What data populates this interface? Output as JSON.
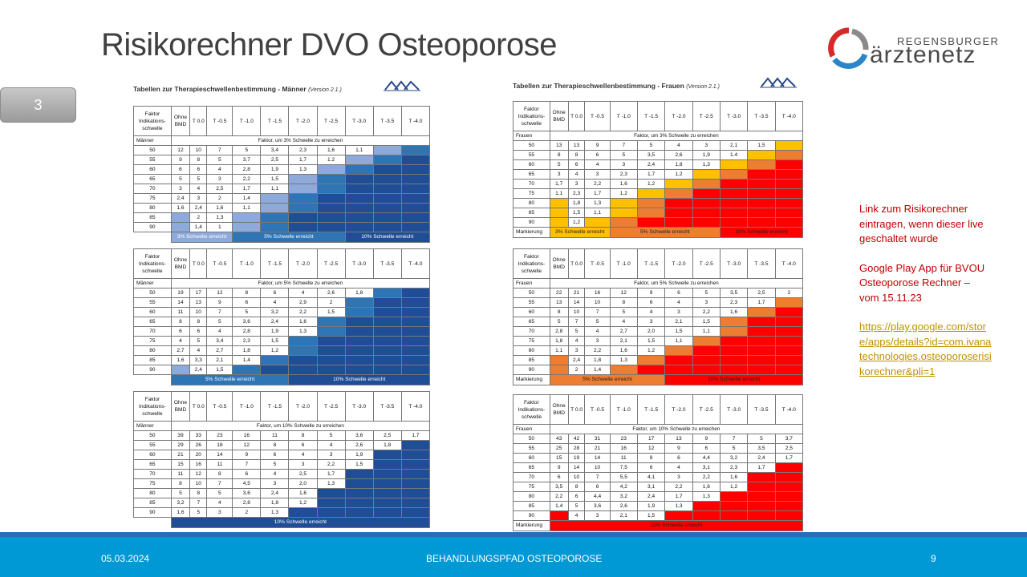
{
  "slide": {
    "title": "Risikorechner DVO Osteoporose",
    "slide_badge": "3",
    "logo": {
      "line1": "REGENSBURGER",
      "line2": "ärztenetz"
    }
  },
  "panels": {
    "men_title": "Tabellen zur Therapieschwellenbestimmung - Männer",
    "women_title": "Tabellen zur Therapieschwellenbestimmung - Frauen",
    "version": "(Version 2.1.)"
  },
  "table_headers": [
    "Faktor Indikations-schwelle",
    "Ohne BMD",
    "T 0.0",
    "T -0.5",
    "T -1.0",
    "T -1.5",
    "T -2.0",
    "T -2.5",
    "T -3.0",
    "T -3.5",
    "T -4.0"
  ],
  "tables": {
    "men3": {
      "group": "Männer",
      "caption": "Faktor, um 3% Schwelle zu erreichen",
      "rows": [
        [
          "50",
          "12",
          "10",
          "7",
          "5",
          "3,4",
          "2,3",
          "1,6",
          "1,1",
          "",
          ""
        ],
        [
          "55",
          "9",
          "8",
          "5",
          "3,7",
          "2,5",
          "1,7",
          "1.2",
          "",
          "",
          ""
        ],
        [
          "60",
          "6",
          "6",
          "4",
          "2,8",
          "1,9",
          "1,3",
          "",
          "",
          "",
          ""
        ],
        [
          "65",
          "5",
          "5",
          "3",
          "2,2",
          "1,5",
          "",
          "",
          "",
          "",
          ""
        ],
        [
          "70",
          "3",
          "4",
          "2,5",
          "1,7",
          "1,1",
          "",
          "",
          "",
          "",
          ""
        ],
        [
          "75",
          "2,4",
          "3",
          "2",
          "1,4",
          "",
          "",
          "",
          "",
          "",
          ""
        ],
        [
          "80",
          "1,6",
          "2,4",
          "1,6",
          "1,1",
          "",
          "",
          "",
          "",
          "",
          ""
        ],
        [
          "85",
          "",
          "2",
          "1,3",
          "",
          "",
          "",
          "",
          "",
          "",
          ""
        ],
        [
          "90",
          "",
          "1,4",
          "1",
          "",
          "",
          "",
          "",
          "",
          "",
          ""
        ]
      ],
      "legend": [
        "3% Schwelle erreicht",
        "5% Schwelle erreicht",
        "10% Schwelle erreicht"
      ]
    },
    "men5": {
      "group": "Männer",
      "caption": "Faktor, um 5% Schwelle zu erreichen",
      "rows": [
        [
          "50",
          "19",
          "17",
          "12",
          "8",
          "6",
          "4",
          "2,6",
          "1,8",
          "",
          ""
        ],
        [
          "55",
          "14",
          "13",
          "9",
          "6",
          "4",
          "2,9",
          "2",
          "",
          "",
          ""
        ],
        [
          "60",
          "11",
          "10",
          "7",
          "5",
          "3,2",
          "2,2",
          "1,5",
          "",
          "",
          ""
        ],
        [
          "65",
          "8",
          "8",
          "5",
          "3,6",
          "2,4",
          "1,6",
          "",
          "",
          "",
          ""
        ],
        [
          "70",
          "6",
          "6",
          "4",
          "2,8",
          "1,9",
          "1,3",
          "",
          "",
          "",
          ""
        ],
        [
          "75",
          "4",
          "5",
          "3,4",
          "2,3",
          "1,5",
          "",
          "",
          "",
          "",
          ""
        ],
        [
          "80",
          "2,7",
          "4",
          "2,7",
          "1,8",
          "1,2",
          "",
          "",
          "",
          "",
          ""
        ],
        [
          "85",
          "1,6",
          "3,3",
          "2,1",
          "1,4",
          "",
          "",
          "",
          "",
          "",
          ""
        ],
        [
          "90",
          "",
          "2,4",
          "1,5",
          "",
          "",
          "",
          "",
          "",
          "",
          ""
        ]
      ],
      "legend": [
        "5% Schwelle erreicht",
        "10% Schwelle erreicht"
      ]
    },
    "men10": {
      "group": "Männer",
      "caption": "Faktor, um 10% Schwelle zu erreichen",
      "rows": [
        [
          "50",
          "39",
          "33",
          "23",
          "16",
          "11",
          "8",
          "5",
          "3,6",
          "2,5",
          "1,7"
        ],
        [
          "55",
          "29",
          "26",
          "18",
          "12",
          "8",
          "6",
          "4",
          "2,6",
          "1,8",
          ""
        ],
        [
          "60",
          "21",
          "20",
          "14",
          "9",
          "6",
          "4",
          "3",
          "1,9",
          "",
          ""
        ],
        [
          "65",
          "15",
          "16",
          "11",
          "7",
          "5",
          "3",
          "2,2",
          "1,5",
          "",
          ""
        ],
        [
          "70",
          "11",
          "12",
          "8",
          "6",
          "4",
          "2,5",
          "1,7",
          "",
          "",
          ""
        ],
        [
          "75",
          "8",
          "10",
          "7",
          "4,5",
          "3",
          "2,0",
          "1,3",
          "",
          "",
          ""
        ],
        [
          "80",
          "5",
          "8",
          "5",
          "3,6",
          "2,4",
          "1,6",
          "",
          "",
          "",
          ""
        ],
        [
          "85",
          "3,2",
          "7",
          "4",
          "2,8",
          "1,8",
          "1,2",
          "",
          "",
          "",
          ""
        ],
        [
          "90",
          "1,6",
          "5",
          "3",
          "2",
          "1,3",
          "",
          "",
          "",
          "",
          ""
        ]
      ],
      "legend": [
        "10% Schwelle erreicht"
      ]
    },
    "women3": {
      "group": "Frauen",
      "caption": "Faktor, um 3% Schwelle zu erreichen",
      "rows": [
        [
          "50",
          "13",
          "13",
          "9",
          "7",
          "5",
          "4",
          "3",
          "2,1",
          "1,5",
          ""
        ],
        [
          "55",
          "8",
          "8",
          "6",
          "5",
          "3,5",
          "2,6",
          "1,9",
          "1.4",
          "",
          ""
        ],
        [
          "60",
          "5",
          "6",
          "4",
          "3",
          "2,4",
          "1,8",
          "1,3",
          "",
          "",
          ""
        ],
        [
          "65",
          "3",
          "4",
          "3",
          "2,3",
          "1,7",
          "1,2",
          "",
          "",
          "",
          ""
        ],
        [
          "70",
          "1,7",
          "3",
          "2,2",
          "1,6",
          "1,2",
          "",
          "",
          "",
          "",
          ""
        ],
        [
          "75",
          "1,1",
          "2,3",
          "1,7",
          "1,2",
          "",
          "",
          "",
          "",
          "",
          ""
        ],
        [
          "80",
          "",
          "1,8",
          "1,3",
          "",
          "",
          "",
          "",
          "",
          "",
          ""
        ],
        [
          "85",
          "",
          "1,5",
          "1,1",
          "",
          "",
          "",
          "",
          "",
          "",
          ""
        ],
        [
          "90",
          "",
          "1,2",
          "",
          "",
          "",
          "",
          "",
          "",
          "",
          ""
        ]
      ],
      "marker": "Markierung",
      "legend": [
        "3% Schwelle erreicht",
        "5% Schwelle erreicht",
        "10% Schwelle erreicht"
      ]
    },
    "women5": {
      "group": "Frauen",
      "caption": "Faktor, um 5% Schwelle zu erreichen",
      "rows": [
        [
          "50",
          "22",
          "21",
          "16",
          "12",
          "9",
          "6",
          "5",
          "3,5",
          "2,5",
          "2"
        ],
        [
          "55",
          "13",
          "14",
          "10",
          "8",
          "6",
          "4",
          "3",
          "2,3",
          "1,7",
          ""
        ],
        [
          "60",
          "8",
          "10",
          "7",
          "5",
          "4",
          "3",
          "2,2",
          "1,6",
          "",
          ""
        ],
        [
          "65",
          "5",
          "7",
          "5",
          "4",
          "3",
          "2,1",
          "1,5",
          "",
          "",
          ""
        ],
        [
          "70",
          "2,8",
          "5",
          "4",
          "2,7",
          "2,0",
          "1,5",
          "1,1",
          "",
          "",
          ""
        ],
        [
          "75",
          "1,8",
          "4",
          "3",
          "2,1",
          "1,5",
          "1,1",
          "",
          "",
          "",
          ""
        ],
        [
          "80",
          "1,1",
          "3",
          "2,2",
          "1,6",
          "1,2",
          "",
          "",
          "",
          "",
          ""
        ],
        [
          "85",
          "",
          "2,4",
          "1,8",
          "1,3",
          "",
          "",
          "",
          "",
          "",
          ""
        ],
        [
          "90",
          "",
          "2",
          "1,4",
          "",
          "",
          "",
          "",
          "",
          "",
          ""
        ]
      ],
      "marker": "Markierung",
      "legend": [
        "5% Schwelle erreicht",
        "10% Schwelle erreicht"
      ]
    },
    "women10": {
      "group": "Frauen",
      "caption": "Faktor, um 10% Schwelle zu erreichen",
      "rows": [
        [
          "50",
          "43",
          "42",
          "31",
          "23",
          "17",
          "13",
          "9",
          "7",
          "5",
          "3,7"
        ],
        [
          "55",
          "25",
          "28",
          "21",
          "16",
          "12",
          "9",
          "6",
          "5",
          "3,5",
          "2,5"
        ],
        [
          "60",
          "15",
          "19",
          "14",
          "11",
          "8",
          "6",
          "4,4",
          "3,2",
          "2,4",
          "1,7"
        ],
        [
          "65",
          "9",
          "14",
          "10",
          "7,5",
          "6",
          "4",
          "3,1",
          "2,3",
          "1,7",
          ""
        ],
        [
          "70",
          "6",
          "10",
          "7",
          "5,5",
          "4,1",
          "3",
          "2,2",
          "1,6",
          "",
          ""
        ],
        [
          "75",
          "3,5",
          "8",
          "6",
          "4,2",
          "3,1",
          "2,2",
          "1,6",
          "1,2",
          "",
          ""
        ],
        [
          "80",
          "2,2",
          "6",
          "4,4",
          "3,2",
          "2,4",
          "1,7",
          "1,3",
          "",
          "",
          ""
        ],
        [
          "85",
          "1,4",
          "5",
          "3,6",
          "2,6",
          "1,9",
          "1,3",
          "",
          "",
          "",
          ""
        ],
        [
          "90",
          "",
          "4",
          "3",
          "2,1",
          "1,5",
          "",
          "",
          "",
          "",
          ""
        ]
      ],
      "marker": "Markierung",
      "legend": [
        "10% Schwelle erreicht"
      ]
    }
  },
  "sidebar_note": {
    "line1": "Link zum Risikorechner eintragen, wenn dieser live geschaltet wurde",
    "line2": "Google Play App für BVOU Osteoporose Rechner – vom 15.11.23",
    "link": "https://play.google.com/store/apps/details?id=com.ivanatechnologies.osteoporoserisikorechner&pli=1"
  },
  "footer": {
    "date": "05.03.2024",
    "center": "BEHANDLUNGSPFAD OSTEOPOROSE",
    "page": "9"
  },
  "colors": {
    "blue_dark": "#1f4e96",
    "blue_mid": "#2e75b6",
    "blue_light": "#8eaadb",
    "yellow": "#ffc000",
    "orange": "#ed7d31",
    "red": "#ff0000",
    "footer": "#0099d6"
  },
  "icons": [
    "dvo-logo-icon",
    "aerztenetz-logo-icon"
  ]
}
